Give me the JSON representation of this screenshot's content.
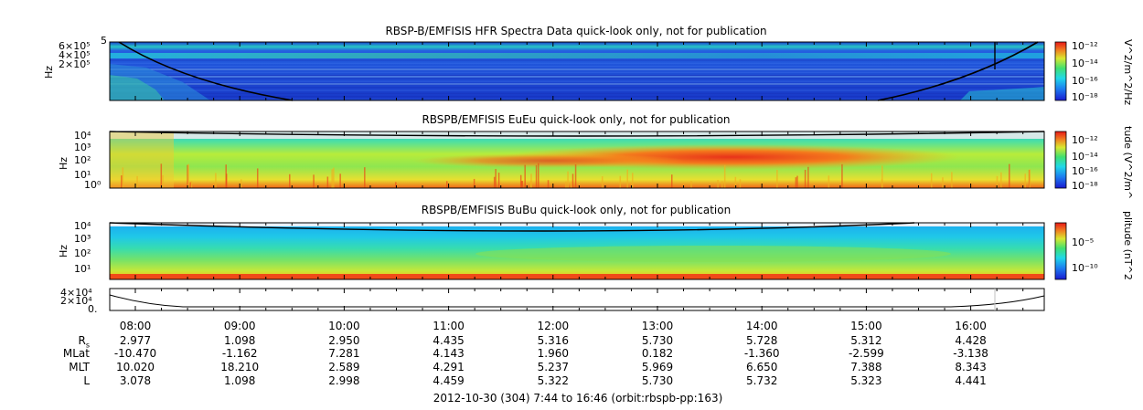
{
  "chart_data": [
    {
      "type": "heatmap",
      "title": "RBSP-B/EMFISIS  HFR Spectra Data quick-look only, not for publication",
      "ylabel": "Hz",
      "yticks": [
        "6×10⁵",
        "4×10⁵",
        "2×10⁵"
      ],
      "ytop_label": "5",
      "colorbar_label": "V^2/m^2/Hz",
      "colorbar_ticks": [
        "10⁻¹²",
        "10⁻¹⁴",
        "10⁻¹⁶",
        "10⁻¹⁸"
      ]
    },
    {
      "type": "heatmap",
      "title": "RBSPB/EMFISIS  EuEu quick-look only, not for publication",
      "ylabel": "Hz",
      "yticks": [
        "10⁴",
        "10³",
        "10²",
        "10¹",
        "10⁰"
      ],
      "colorbar_label": "tude (V^2/m^",
      "colorbar_ticks": [
        "10⁻¹²",
        "10⁻¹⁴",
        "10⁻¹⁶",
        "10⁻¹⁸"
      ]
    },
    {
      "type": "heatmap",
      "title": "RBSPB/EMFISIS  BuBu quick-look only, not for publication",
      "ylabel": "Hz",
      "yticks": [
        "10⁴",
        "10³",
        "10²",
        "10¹"
      ],
      "colorbar_label": "plitude (nT^2",
      "colorbar_ticks": [
        "10⁻⁵",
        "10⁻¹⁰"
      ]
    },
    {
      "type": "line",
      "yticks": [
        "4×10⁴",
        "2×10⁴",
        "0."
      ],
      "time_labels": [
        "08:00",
        "09:00",
        "10:00",
        "11:00",
        "12:00",
        "13:00",
        "14:00",
        "15:00",
        "16:00"
      ],
      "ephemeris": {
        "rows": [
          {
            "label": "R",
            "label_sub": "s",
            "values": [
              "2.977",
              "1.098",
              "2.950",
              "4.435",
              "5.316",
              "5.730",
              "5.728",
              "5.312",
              "4.428"
            ]
          },
          {
            "label": "MLat",
            "values": [
              "-10.470",
              "-1.162",
              "7.281",
              "4.143",
              "1.960",
              "0.182",
              "-1.360",
              "-2.599",
              "-3.138"
            ]
          },
          {
            "label": "MLT",
            "values": [
              "10.020",
              "18.210",
              "2.589",
              "4.291",
              "5.237",
              "5.969",
              "6.650",
              "7.388",
              "8.343"
            ]
          },
          {
            "label": "L",
            "values": [
              "3.078",
              "1.098",
              "2.998",
              "4.459",
              "5.322",
              "5.730",
              "5.732",
              "5.323",
              "4.441"
            ]
          }
        ]
      },
      "footer": "2012-10-30 (304) 7:44 to 16:46 (orbit:rbspb-pp:163)"
    }
  ]
}
